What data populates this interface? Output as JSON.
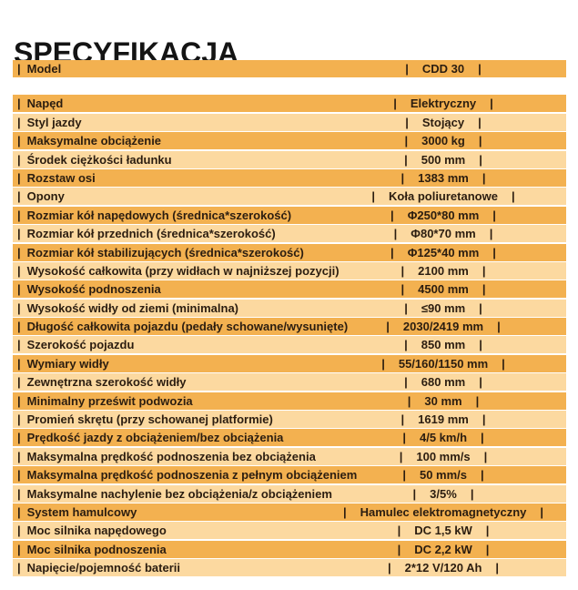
{
  "title": "SPECYFIKACJA",
  "colors": {
    "page_bg": "#FFFFFF",
    "row_dark": "#F3B150",
    "row_light": "#FCD9A0",
    "text": "#2B1D10",
    "title_text": "#141414"
  },
  "spec_table": {
    "separator": "|",
    "header_row": {
      "label": "Model",
      "value": "CDD 30",
      "shade": "dark"
    },
    "rows": [
      {
        "label": "Napęd",
        "value": "Elektryczny",
        "shade": "dark"
      },
      {
        "label": "Styl jazdy",
        "value": "Stojący",
        "shade": "light"
      },
      {
        "label": "Maksymalne obciążenie",
        "value": "3000 kg",
        "shade": "dark"
      },
      {
        "label": "Środek ciężkości ładunku",
        "value": "500 mm",
        "shade": "light"
      },
      {
        "label": "Rozstaw osi",
        "value": "1383 mm",
        "shade": "dark"
      },
      {
        "label": "Opony",
        "value": "Koła poliuretanowe",
        "shade": "light"
      },
      {
        "label": "Rozmiar kół napędowych (średnica*szerokość)",
        "value": "Φ250*80 mm",
        "shade": "dark"
      },
      {
        "label": "Rozmiar kół przednich (średnica*szerokość)",
        "value": "Φ80*70 mm",
        "shade": "light"
      },
      {
        "label": "Rozmiar kół stabilizujących (średnica*szerokość)",
        "value": "Φ125*40 mm",
        "shade": "dark"
      },
      {
        "label": "Wysokość całkowita (przy widłach w najniższej pozycji)",
        "value": "2100 mm",
        "shade": "light"
      },
      {
        "label": "Wysokość podnoszenia",
        "value": "4500 mm",
        "shade": "dark"
      },
      {
        "label": "Wysokość widły od ziemi (minimalna)",
        "value": "≤90 mm",
        "shade": "light"
      },
      {
        "label": "Długość całkowita pojazdu (pedały schowane/wysunięte)",
        "value": "2030/2419 mm",
        "shade": "dark"
      },
      {
        "label": "Szerokość pojazdu",
        "value": "850 mm",
        "shade": "light"
      },
      {
        "label": "Wymiary widły",
        "value": "55/160/1150 mm",
        "shade": "dark"
      },
      {
        "label": "Zewnętrzna szerokość widły",
        "value": "680 mm",
        "shade": "light"
      },
      {
        "label": "Minimalny prześwit podwozia",
        "value": "30 mm",
        "shade": "dark"
      },
      {
        "label": "Promień skrętu (przy schowanej platformie)",
        "value": "1619 mm",
        "shade": "light"
      },
      {
        "label": "Prędkość jazdy z obciążeniem/bez obciążenia",
        "value": "4/5 km/h",
        "shade": "dark"
      },
      {
        "label": "Maksymalna prędkość podnoszenia bez obciążenia",
        "value": "100 mm/s",
        "shade": "light"
      },
      {
        "label": "Maksymalna prędkość podnoszenia z pełnym obciążeniem",
        "value": "50 mm/s",
        "shade": "dark"
      },
      {
        "label": "Maksymalne nachylenie bez obciążenia/z obciążeniem",
        "value": "3/5%",
        "shade": "light"
      },
      {
        "label": "System hamulcowy",
        "value": "Hamulec elektromagnetyczny",
        "shade": "dark"
      },
      {
        "label": "Moc silnika napędowego",
        "value": "DC 1,5 kW",
        "shade": "light"
      },
      {
        "label": "Moc silnika podnoszenia",
        "value": "DC 2,2 kW",
        "shade": "dark"
      },
      {
        "label": "Napięcie/pojemność baterii",
        "value": "2*12 V/120 Ah",
        "shade": "light"
      }
    ]
  }
}
